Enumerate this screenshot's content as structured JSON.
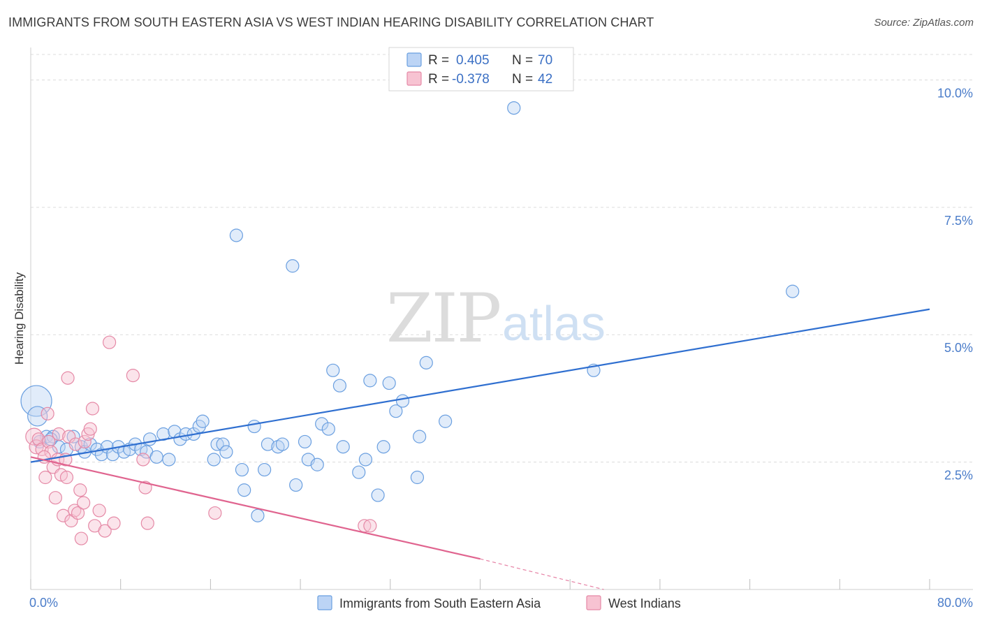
{
  "title": "IMMIGRANTS FROM SOUTH EASTERN ASIA VS WEST INDIAN HEARING DISABILITY CORRELATION CHART",
  "source": "Source: ZipAtlas.com",
  "watermark": {
    "zip": "ZIP",
    "atlas": "atlas"
  },
  "legend_top": {
    "rows": [
      {
        "r_label": "R =",
        "r_value": "0.405",
        "n_label": "N =",
        "n_value": "70",
        "color": "#6a9fe0",
        "fill": "#bcd4f5"
      },
      {
        "r_label": "R =",
        "r_value": "-0.378",
        "n_label": "N =",
        "n_value": "42",
        "color": "#e589a6",
        "fill": "#f7c3d2"
      }
    ]
  },
  "chart_data": {
    "type": "scatter",
    "ylabel": "Hearing Disability",
    "xlim": [
      0,
      80
    ],
    "ylim": [
      0,
      10.5
    ],
    "x_tick_labels": [
      "0.0%",
      "80.0%"
    ],
    "y_ticks": [
      2.5,
      5.0,
      7.5,
      10.0
    ],
    "y_tick_labels": [
      "2.5%",
      "5.0%",
      "7.5%",
      "10.0%"
    ],
    "grid": true,
    "series": [
      {
        "name": "Immigrants from South Eastern Asia",
        "color": "#6a9fe0",
        "fill": "#bcd4f5",
        "trend": {
          "x": [
            0,
            80
          ],
          "y": [
            2.5,
            5.5
          ],
          "dashed_from": null
        },
        "points": [
          [
            0.5,
            3.7,
            22
          ],
          [
            0.6,
            3.4,
            14
          ],
          [
            1.4,
            3.0,
            9
          ],
          [
            2.0,
            3.0,
            9
          ],
          [
            2.5,
            2.8,
            9
          ],
          [
            3.2,
            2.75,
            9
          ],
          [
            3.8,
            3.0,
            9
          ],
          [
            4.5,
            2.8,
            9
          ],
          [
            4.8,
            2.7,
            9
          ],
          [
            5.3,
            2.85,
            9
          ],
          [
            5.9,
            2.75,
            9
          ],
          [
            6.3,
            2.65,
            9
          ],
          [
            6.8,
            2.8,
            9
          ],
          [
            7.3,
            2.65,
            9
          ],
          [
            7.8,
            2.8,
            9
          ],
          [
            8.3,
            2.7,
            9
          ],
          [
            8.8,
            2.75,
            9
          ],
          [
            9.3,
            2.85,
            9
          ],
          [
            9.8,
            2.75,
            9
          ],
          [
            10.3,
            2.7,
            9
          ],
          [
            10.6,
            2.95,
            9
          ],
          [
            11.2,
            2.6,
            9
          ],
          [
            11.8,
            3.05,
            9
          ],
          [
            12.3,
            2.55,
            9
          ],
          [
            12.8,
            3.1,
            9
          ],
          [
            13.3,
            2.95,
            9
          ],
          [
            13.8,
            3.05,
            9
          ],
          [
            14.5,
            3.05,
            9
          ],
          [
            15.0,
            3.2,
            9
          ],
          [
            15.3,
            3.3,
            9
          ],
          [
            16.3,
            2.55,
            9
          ],
          [
            16.6,
            2.85,
            9
          ],
          [
            17.1,
            2.85,
            9
          ],
          [
            17.4,
            2.7,
            9
          ],
          [
            18.3,
            6.95,
            9
          ],
          [
            18.8,
            2.35,
            9
          ],
          [
            19.0,
            1.95,
            9
          ],
          [
            19.9,
            3.2,
            9
          ],
          [
            20.2,
            1.45,
            9
          ],
          [
            20.8,
            2.35,
            9
          ],
          [
            21.1,
            2.85,
            9
          ],
          [
            22.0,
            2.8,
            9
          ],
          [
            22.4,
            2.85,
            9
          ],
          [
            23.3,
            6.35,
            9
          ],
          [
            23.6,
            2.05,
            9
          ],
          [
            24.4,
            2.9,
            9
          ],
          [
            24.7,
            2.55,
            9
          ],
          [
            25.5,
            2.45,
            9
          ],
          [
            25.9,
            3.25,
            9
          ],
          [
            26.5,
            3.15,
            9
          ],
          [
            26.9,
            4.3,
            9
          ],
          [
            27.5,
            4.0,
            9
          ],
          [
            27.8,
            2.8,
            9
          ],
          [
            29.2,
            2.3,
            9
          ],
          [
            29.8,
            2.55,
            9
          ],
          [
            30.2,
            4.1,
            9
          ],
          [
            30.9,
            1.85,
            9
          ],
          [
            31.4,
            2.8,
            9
          ],
          [
            31.9,
            4.05,
            9
          ],
          [
            32.5,
            3.5,
            9
          ],
          [
            33.1,
            3.7,
            9
          ],
          [
            34.4,
            2.2,
            9
          ],
          [
            34.6,
            3.0,
            9
          ],
          [
            35.2,
            4.45,
            9
          ],
          [
            36.9,
            3.3,
            9
          ],
          [
            43.0,
            9.45,
            9
          ],
          [
            50.1,
            4.3,
            9
          ],
          [
            67.8,
            5.85,
            9
          ],
          [
            0.8,
            2.9,
            9
          ],
          [
            1.8,
            2.95,
            9
          ]
        ]
      },
      {
        "name": "West Indians",
        "color": "#e589a6",
        "fill": "#f7c3d2",
        "trend": {
          "x": [
            0,
            40,
            51
          ],
          "y": [
            2.6,
            0.6,
            0.0
          ],
          "dashed_from": 40
        },
        "points": [
          [
            0.3,
            3.0,
            12
          ],
          [
            0.5,
            2.8,
            10
          ],
          [
            0.7,
            2.95,
            9
          ],
          [
            1.0,
            2.75,
            9
          ],
          [
            1.3,
            2.2,
            9
          ],
          [
            1.5,
            3.45,
            9
          ],
          [
            1.6,
            2.9,
            9
          ],
          [
            1.8,
            2.7,
            9
          ],
          [
            2.0,
            2.4,
            9
          ],
          [
            2.2,
            1.8,
            9
          ],
          [
            2.4,
            2.55,
            9
          ],
          [
            2.5,
            3.05,
            9
          ],
          [
            2.7,
            2.25,
            9
          ],
          [
            2.9,
            1.45,
            9
          ],
          [
            3.1,
            2.55,
            9
          ],
          [
            3.2,
            2.2,
            9
          ],
          [
            3.4,
            3.0,
            9
          ],
          [
            3.6,
            1.35,
            9
          ],
          [
            3.9,
            1.55,
            9
          ],
          [
            3.3,
            4.15,
            9
          ],
          [
            4.0,
            2.85,
            9
          ],
          [
            4.2,
            1.5,
            9
          ],
          [
            4.4,
            1.95,
            9
          ],
          [
            4.5,
            1.0,
            9
          ],
          [
            4.7,
            1.7,
            9
          ],
          [
            4.8,
            2.9,
            9
          ],
          [
            5.1,
            3.05,
            9
          ],
          [
            5.3,
            3.15,
            9
          ],
          [
            5.5,
            3.55,
            9
          ],
          [
            5.7,
            1.25,
            9
          ],
          [
            6.1,
            1.55,
            9
          ],
          [
            6.6,
            1.15,
            9
          ],
          [
            7.0,
            4.85,
            9
          ],
          [
            7.4,
            1.3,
            9
          ],
          [
            9.1,
            4.2,
            9
          ],
          [
            10.0,
            2.55,
            9
          ],
          [
            10.2,
            2.0,
            9
          ],
          [
            10.4,
            1.3,
            9
          ],
          [
            16.4,
            1.5,
            9
          ],
          [
            29.7,
            1.25,
            9
          ],
          [
            30.2,
            1.25,
            9
          ],
          [
            1.2,
            2.6,
            9
          ]
        ]
      }
    ]
  }
}
